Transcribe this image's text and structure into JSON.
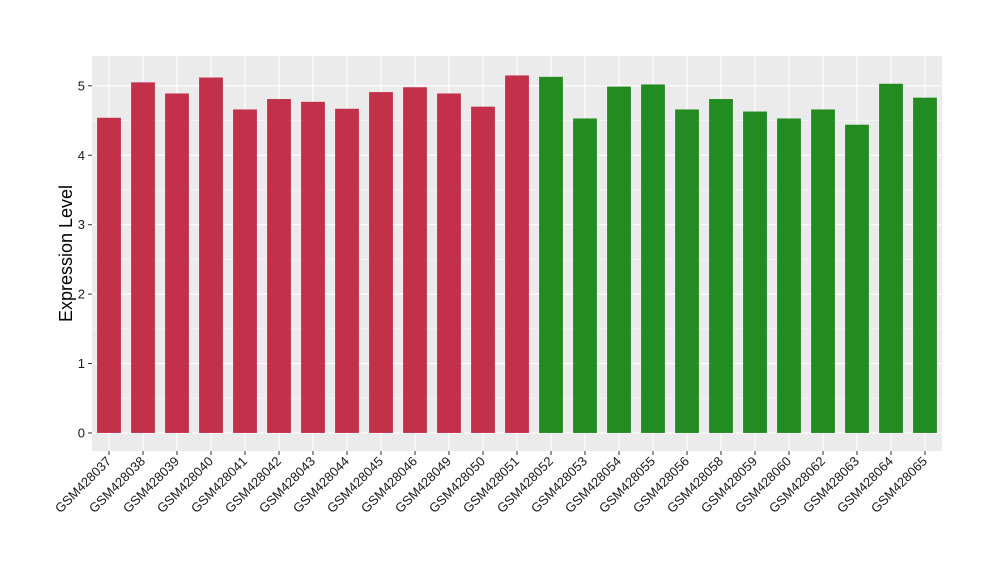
{
  "chart_data": {
    "type": "bar",
    "title": "",
    "xlabel": "",
    "ylabel": "Expression Level",
    "ylim": [
      0,
      5.3
    ],
    "yticks": [
      "0",
      "1",
      "2",
      "3",
      "4",
      "5"
    ],
    "grid": true,
    "legend": "none",
    "categories": [
      "GSM428037",
      "GSM428038",
      "GSM428039",
      "GSM428040",
      "GSM428041",
      "GSM428042",
      "GSM428043",
      "GSM428044",
      "GSM428045",
      "GSM428046",
      "GSM428049",
      "GSM428050",
      "GSM428051",
      "GSM428052",
      "GSM428053",
      "GSM428054",
      "GSM428055",
      "GSM428056",
      "GSM428058",
      "GSM428059",
      "GSM428060",
      "GSM428062",
      "GSM428063",
      "GSM428064",
      "GSM428065"
    ],
    "values": [
      4.54,
      5.05,
      4.89,
      5.12,
      4.66,
      4.81,
      4.77,
      4.67,
      4.91,
      4.98,
      4.89,
      4.7,
      5.15,
      5.13,
      4.53,
      4.99,
      5.02,
      4.66,
      4.81,
      4.63,
      4.53,
      4.66,
      4.44,
      5.03,
      4.83
    ],
    "groups": [
      1,
      1,
      1,
      1,
      1,
      1,
      1,
      1,
      1,
      1,
      1,
      1,
      1,
      2,
      2,
      2,
      2,
      2,
      2,
      2,
      2,
      2,
      2,
      2,
      2
    ],
    "colors": {
      "group1": "#c3304a",
      "group2": "#228b22",
      "panel_background": "#ebebeb",
      "grid_major": "#ffffff",
      "grid_minor": "#f5f5f5",
      "tick_color": "#333333"
    }
  }
}
